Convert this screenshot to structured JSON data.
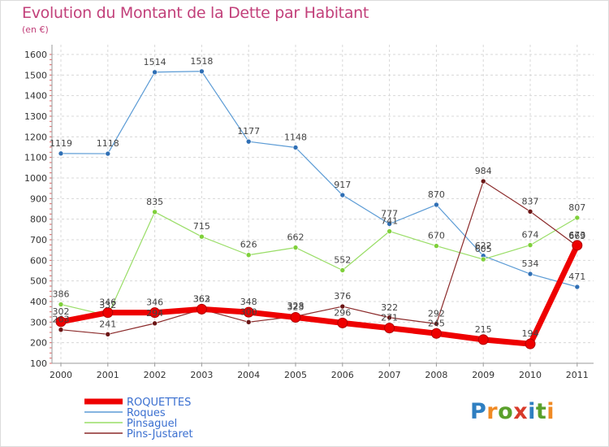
{
  "title": "Evolution du Montant de la Dette par Habitant",
  "subtitle": "(en €)",
  "logo": {
    "text": "Proxiti",
    "colors": [
      "#2f7fc1",
      "#f08a24",
      "#5aa02c",
      "#d83a2a",
      "#2f7fc1",
      "#5aa02c",
      "#f08a24"
    ]
  },
  "chart_data": {
    "type": "line",
    "x": [
      "2000",
      "2001",
      "2002",
      "2003",
      "2004",
      "2005",
      "2006",
      "2007",
      "2008",
      "2009",
      "2010",
      "2011"
    ],
    "yticks": [
      100,
      200,
      300,
      400,
      500,
      600,
      700,
      800,
      900,
      1000,
      1100,
      1200,
      1300,
      1400,
      1500,
      1600
    ],
    "ylim": [
      100,
      1600
    ],
    "grid": true,
    "legend_position": "bottom-left",
    "series": [
      {
        "name": "Roques",
        "color": "#5b9bd5",
        "marker": "#2f6fb5",
        "width": 1.2,
        "r": 3,
        "values": [
          1119,
          1118,
          1514,
          1518,
          1177,
          1148,
          917,
          777,
          870,
          622,
          534,
          471
        ]
      },
      {
        "name": "Pinsaguel",
        "color": "#99dd66",
        "marker": "#7fd03a",
        "width": 1.2,
        "r": 3,
        "values": [
          386,
          332,
          835,
          715,
          626,
          662,
          552,
          741,
          670,
          605,
          674,
          807
        ]
      },
      {
        "name": "Pins-Justaret",
        "color": "#8b2a2a",
        "marker": "#6b1515",
        "width": 1.2,
        "r": 3,
        "values": [
          263,
          241,
          294,
          362,
          300,
          328,
          376,
          322,
          292,
          984,
          837,
          669
        ]
      },
      {
        "name": "ROQUETTES",
        "color": "#ee0000",
        "marker": "#ee0000",
        "width": 7,
        "r": 6,
        "highlight": true,
        "values": [
          302,
          346,
          346,
          363,
          348,
          323,
          296,
          271,
          245,
          215,
          194,
          673
        ]
      }
    ]
  }
}
